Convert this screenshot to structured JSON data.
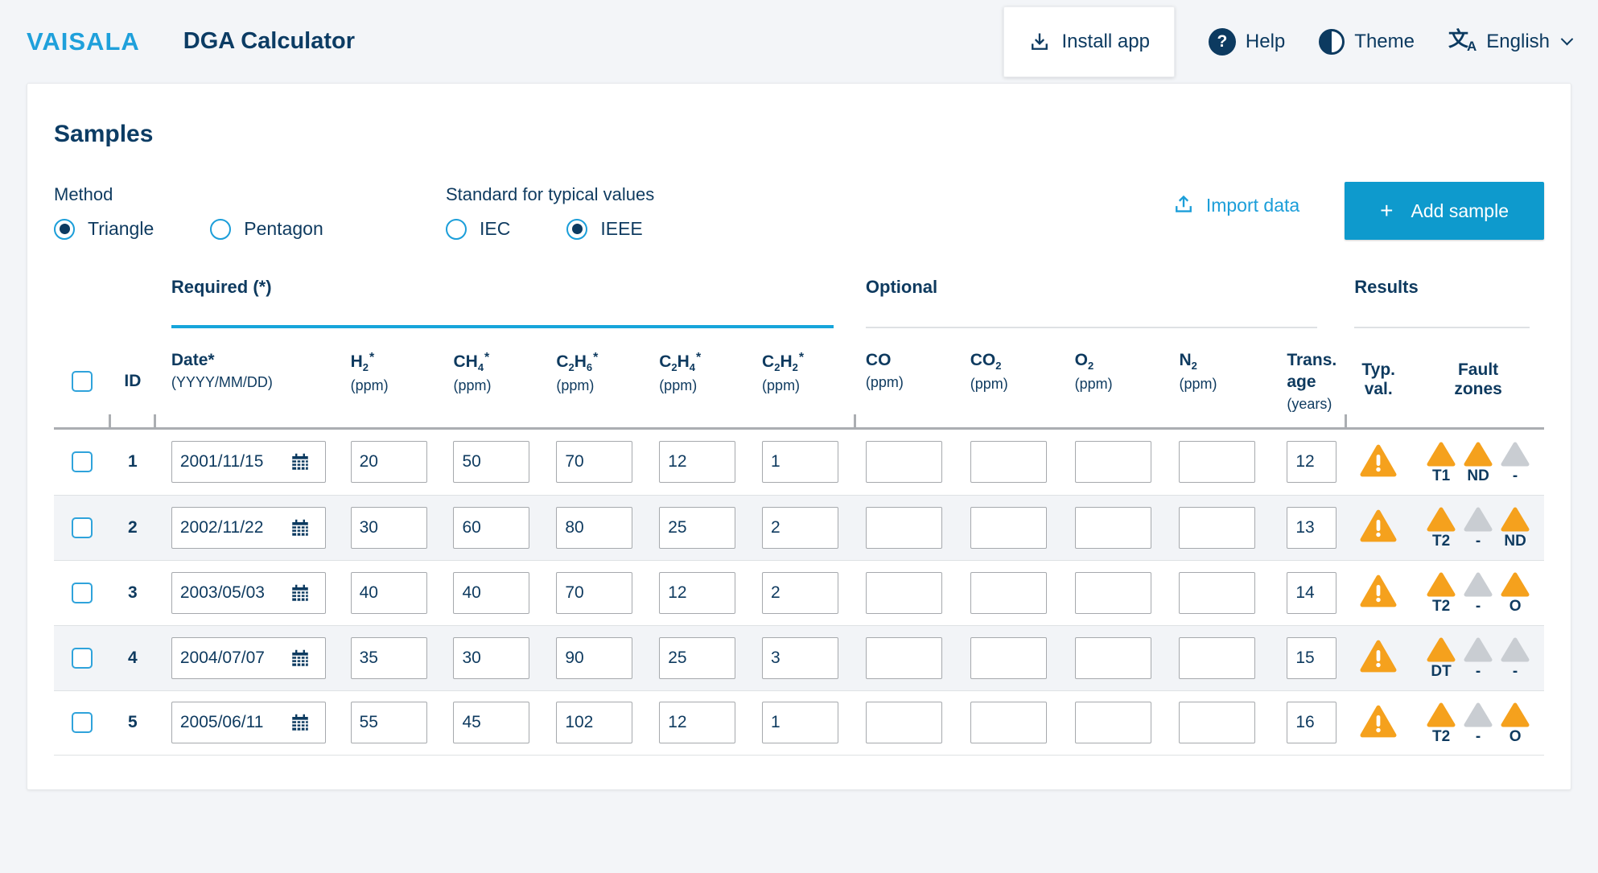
{
  "colors": {
    "accent": "#1B9ED9",
    "navy": "#0C3A60",
    "button_cyan": "#0E9ACD",
    "warning_orange": "#F5A11D",
    "zone_inactive": "#C9CDD2",
    "required_underline": "#16A5DB"
  },
  "header": {
    "logo": "VAISALA",
    "title": "DGA Calculator",
    "install_label": "Install app",
    "help_label": "Help",
    "theme_label": "Theme",
    "language_label": "English"
  },
  "samples": {
    "title": "Samples",
    "method": {
      "label": "Method",
      "options": [
        {
          "label": "Triangle",
          "selected": true
        },
        {
          "label": "Pentagon",
          "selected": false
        }
      ]
    },
    "standard": {
      "label": "Standard for typical values",
      "options": [
        {
          "label": "IEC",
          "selected": false
        },
        {
          "label": "IEEE",
          "selected": true
        }
      ]
    },
    "import_label": "Import data",
    "add_label": "Add sample",
    "add_plus": "+"
  },
  "table": {
    "groups": {
      "required": "Required (*)",
      "optional": "Optional",
      "results": "Results"
    },
    "columns": {
      "id": "ID",
      "date": {
        "title": "Date*",
        "sub": "(YYYY/MM/DD)"
      },
      "h2": {
        "f1": "H",
        "s1": "2",
        "star": "*",
        "unit": "(ppm)"
      },
      "ch4": {
        "f1": "CH",
        "s1": "4",
        "star": "*",
        "unit": "(ppm)"
      },
      "c2h6": {
        "f1": "C",
        "s1": "2",
        "f2": "H",
        "s2": "6",
        "star": "*",
        "unit": "(ppm)"
      },
      "c2h4": {
        "f1": "C",
        "s1": "2",
        "f2": "H",
        "s2": "4",
        "star": "*",
        "unit": "(ppm)"
      },
      "c2h2": {
        "f1": "C",
        "s1": "2",
        "f2": "H",
        "s2": "2",
        "star": "*",
        "unit": "(ppm)"
      },
      "co": {
        "f1": "CO",
        "unit": "(ppm)"
      },
      "co2": {
        "f1": "CO",
        "s1": "2",
        "unit": "(ppm)"
      },
      "o2": {
        "f1": "O",
        "s1": "2",
        "unit": "(ppm)"
      },
      "n2": {
        "f1": "N",
        "s1": "2",
        "unit": "(ppm)"
      },
      "age": {
        "l1": "Trans.",
        "l2": "age",
        "unit": "(years)"
      },
      "typ": {
        "l1": "Typ.",
        "l2": "val."
      },
      "fault": {
        "l1": "Fault",
        "l2": "zones"
      }
    },
    "rows": [
      {
        "id": "1",
        "date": "2001/11/15",
        "h2": "20",
        "ch4": "50",
        "c2h6": "70",
        "c2h4": "12",
        "c2h2": "1",
        "co": "",
        "co2": "",
        "o2": "",
        "n2": "",
        "age": "12",
        "typ_val": "warning",
        "zones": [
          {
            "state": "active",
            "label": "T1"
          },
          {
            "state": "active",
            "label": "ND"
          },
          {
            "state": "inactive",
            "label": "-"
          }
        ]
      },
      {
        "id": "2",
        "date": "2002/11/22",
        "h2": "30",
        "ch4": "60",
        "c2h6": "80",
        "c2h4": "25",
        "c2h2": "2",
        "co": "",
        "co2": "",
        "o2": "",
        "n2": "",
        "age": "13",
        "typ_val": "warning",
        "zones": [
          {
            "state": "active",
            "label": "T2"
          },
          {
            "state": "inactive",
            "label": "-"
          },
          {
            "state": "active",
            "label": "ND"
          }
        ]
      },
      {
        "id": "3",
        "date": "2003/05/03",
        "h2": "40",
        "ch4": "40",
        "c2h6": "70",
        "c2h4": "12",
        "c2h2": "2",
        "co": "",
        "co2": "",
        "o2": "",
        "n2": "",
        "age": "14",
        "typ_val": "warning",
        "zones": [
          {
            "state": "active",
            "label": "T2"
          },
          {
            "state": "inactive",
            "label": "-"
          },
          {
            "state": "active",
            "label": "O"
          }
        ]
      },
      {
        "id": "4",
        "date": "2004/07/07",
        "h2": "35",
        "ch4": "30",
        "c2h6": "90",
        "c2h4": "25",
        "c2h2": "3",
        "co": "",
        "co2": "",
        "o2": "",
        "n2": "",
        "age": "15",
        "typ_val": "warning",
        "zones": [
          {
            "state": "active",
            "label": "DT"
          },
          {
            "state": "inactive",
            "label": "-"
          },
          {
            "state": "inactive",
            "label": "-"
          }
        ]
      },
      {
        "id": "5",
        "date": "2005/06/11",
        "h2": "55",
        "ch4": "45",
        "c2h6": "102",
        "c2h4": "12",
        "c2h2": "1",
        "co": "",
        "co2": "",
        "o2": "",
        "n2": "",
        "age": "16",
        "typ_val": "warning",
        "zones": [
          {
            "state": "active",
            "label": "T2"
          },
          {
            "state": "inactive",
            "label": "-"
          },
          {
            "state": "active",
            "label": "O"
          }
        ]
      }
    ]
  }
}
